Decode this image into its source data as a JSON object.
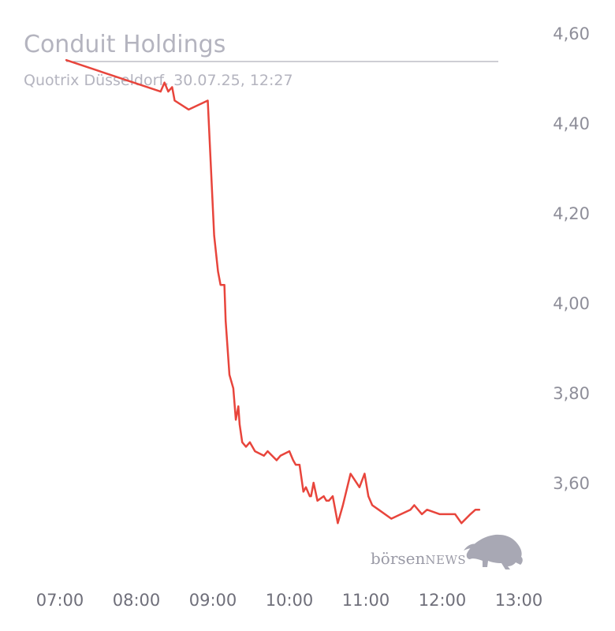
{
  "chart_data": {
    "type": "line",
    "title": "Conduit Holdings",
    "subtitle": "Quotrix Düsseldorf, 30.07.25, 12:27",
    "x_ticks": [
      "07:00",
      "08:00",
      "09:00",
      "10:00",
      "11:00",
      "12:00",
      "13:00"
    ],
    "y_ticks": [
      "4,60",
      "4,40",
      "4,20",
      "4,00",
      "3,80",
      "3,60"
    ],
    "xlim": [
      "07:00",
      "13:00"
    ],
    "ylim": [
      3.45,
      4.62
    ],
    "grid": false,
    "line_color": "#e8453c",
    "series": [
      {
        "x": [
          "07:05",
          "08:19",
          "08:22",
          "08:25",
          "08:28",
          "08:30",
          "08:41",
          "08:56",
          "09:01",
          "09:04",
          "09:06",
          "09:09",
          "09:10",
          "09:13",
          "09:16",
          "09:18",
          "09:20",
          "09:21",
          "09:23",
          "09:26",
          "09:29",
          "09:33",
          "09:40",
          "09:43",
          "09:50",
          "09:53",
          "10:00",
          "10:03",
          "10:05",
          "10:08",
          "10:11",
          "10:13",
          "10:16",
          "10:17",
          "10:19",
          "10:22",
          "10:27",
          "10:29",
          "10:31",
          "10:34",
          "10:38",
          "10:42",
          "10:48",
          "10:55",
          "10:59",
          "11:02",
          "11:05",
          "11:10",
          "11:20",
          "11:35",
          "11:38",
          "11:44",
          "11:48",
          "11:58",
          "12:10",
          "12:15",
          "12:22",
          "12:26",
          "12:29"
        ],
        "values": [
          4.54,
          4.47,
          4.49,
          4.47,
          4.48,
          4.45,
          4.43,
          4.45,
          4.15,
          4.07,
          4.04,
          4.04,
          3.96,
          3.84,
          3.81,
          3.74,
          3.77,
          3.73,
          3.69,
          3.68,
          3.69,
          3.67,
          3.66,
          3.67,
          3.65,
          3.66,
          3.67,
          3.65,
          3.64,
          3.64,
          3.58,
          3.59,
          3.57,
          3.57,
          3.6,
          3.56,
          3.57,
          3.56,
          3.56,
          3.57,
          3.51,
          3.55,
          3.62,
          3.59,
          3.62,
          3.57,
          3.55,
          3.54,
          3.52,
          3.54,
          3.55,
          3.53,
          3.54,
          3.53,
          3.53,
          3.51,
          3.53,
          3.54,
          3.54
        ]
      }
    ]
  },
  "logo": {
    "text_lower": "börsen",
    "text_caps": "NEWS",
    "icon": "bull-icon"
  }
}
